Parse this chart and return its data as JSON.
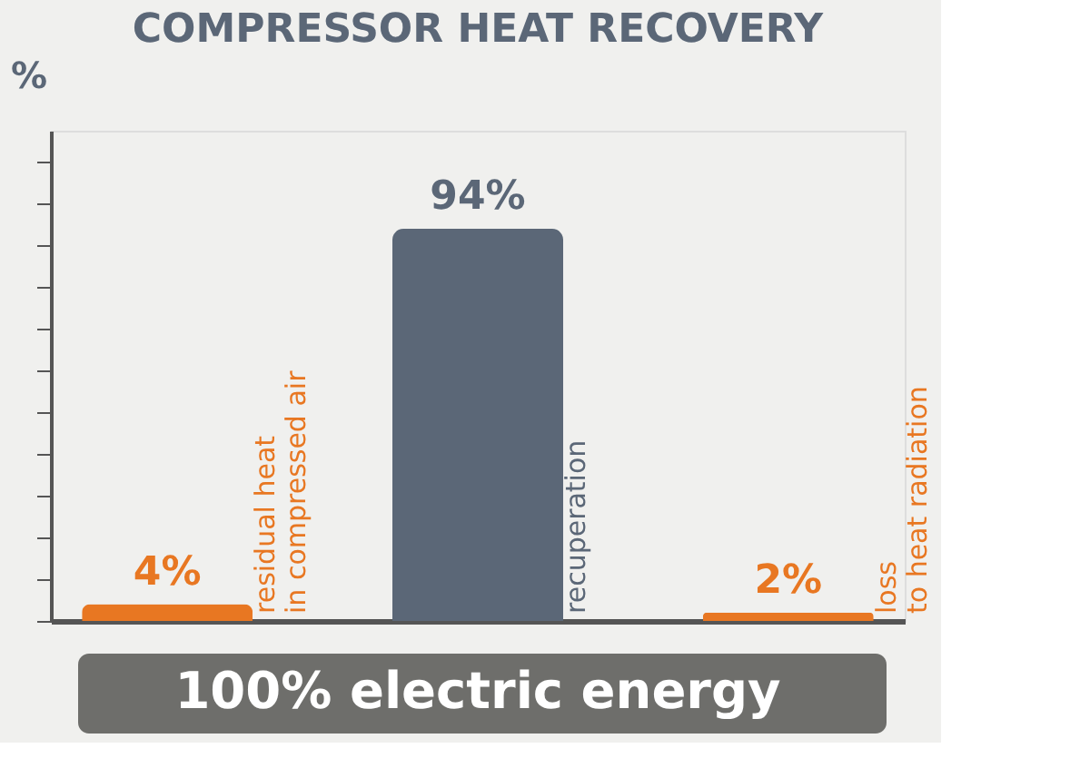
{
  "chart_data": {
    "type": "bar",
    "title": "COMPRESSOR HEAT RECOVERY",
    "ylabel": "%",
    "categories": [
      "residual heat\nin compressed air",
      "recuperation",
      "loss\nto heat radiation"
    ],
    "values": [
      4,
      94,
      2
    ],
    "colors": [
      "#e87722",
      "#5b6777",
      "#e87722"
    ],
    "value_labels": [
      "4%",
      "94%",
      "2%"
    ],
    "annotations": [
      "100% electric energy"
    ],
    "tick_labels": false,
    "grid": false
  }
}
